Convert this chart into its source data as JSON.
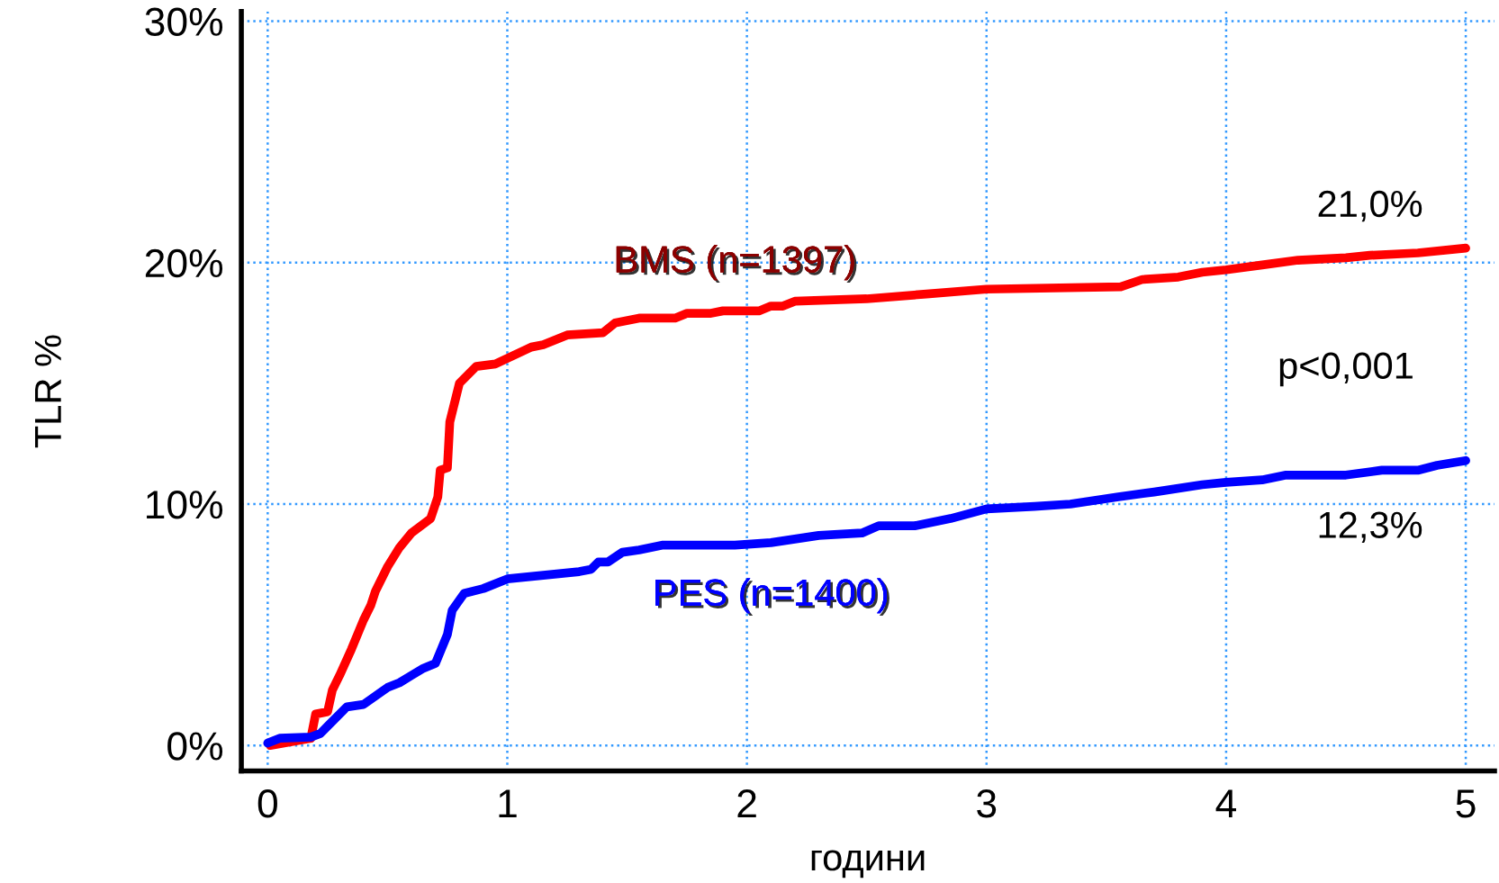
{
  "chart_data": {
    "type": "line",
    "xlabel": "години",
    "ylabel": "TLR %",
    "xlim": [
      -0.11,
      5.12
    ],
    "xticks": [
      0,
      1,
      2,
      3,
      4,
      5
    ],
    "ylim": [
      -1.05,
      30.4
    ],
    "yticks": [
      {
        "value": 0,
        "label": "0%"
      },
      {
        "value": 10,
        "label": "10%"
      },
      {
        "value": 20,
        "label": "20%"
      },
      {
        "value": 30,
        "label": "30%"
      }
    ],
    "grid": true,
    "marker": "none",
    "line_style": "solid",
    "series": [
      {
        "name": "BMS (n=1397)",
        "color": "#ff0000",
        "x": [
          0.01,
          0.18,
          0.2,
          0.25,
          0.27,
          0.3,
          0.35,
          0.4,
          0.43,
          0.45,
          0.5,
          0.55,
          0.6,
          0.68,
          0.71,
          0.72,
          0.75,
          0.76,
          0.8,
          0.87,
          0.95,
          1.1,
          1.15,
          1.25,
          1.4,
          1.45,
          1.55,
          1.7,
          1.75,
          1.85,
          1.9,
          2.05,
          2.1,
          2.15,
          2.2,
          2.5,
          2.75,
          3.0,
          3.56,
          3.65,
          3.8,
          3.9,
          4.0,
          4.15,
          4.3,
          4.5,
          4.6,
          4.8,
          5.0
        ],
        "values": [
          0,
          0.3,
          1.3,
          1.4,
          2.3,
          2.9,
          4.0,
          5.2,
          5.8,
          6.4,
          7.4,
          8.2,
          8.8,
          9.4,
          10.3,
          11.4,
          11.5,
          13.4,
          15.0,
          15.7,
          15.8,
          16.5,
          16.6,
          17.0,
          17.1,
          17.5,
          17.7,
          17.7,
          17.9,
          17.9,
          18.0,
          18.0,
          18.2,
          18.2,
          18.4,
          18.5,
          18.7,
          18.9,
          19.0,
          19.3,
          19.4,
          19.6,
          19.7,
          19.9,
          20.1,
          20.2,
          20.3,
          20.4,
          20.6
        ]
      },
      {
        "name": "PES (n=1400)",
        "color": "#0000ff",
        "x": [
          0.0,
          0.05,
          0.18,
          0.22,
          0.25,
          0.33,
          0.4,
          0.5,
          0.55,
          0.6,
          0.65,
          0.7,
          0.75,
          0.77,
          0.82,
          0.9,
          1.0,
          1.3,
          1.35,
          1.38,
          1.42,
          1.48,
          1.55,
          1.65,
          1.95,
          2.1,
          2.3,
          2.48,
          2.55,
          2.7,
          2.85,
          3.0,
          3.2,
          3.35,
          3.55,
          3.7,
          3.9,
          4.0,
          4.15,
          4.25,
          4.5,
          4.65,
          4.8,
          4.88,
          5.0
        ],
        "values": [
          0.1,
          0.3,
          0.35,
          0.5,
          0.8,
          1.6,
          1.7,
          2.4,
          2.6,
          2.9,
          3.2,
          3.4,
          4.6,
          5.6,
          6.3,
          6.5,
          6.9,
          7.2,
          7.3,
          7.6,
          7.6,
          8.0,
          8.1,
          8.3,
          8.3,
          8.4,
          8.7,
          8.8,
          9.1,
          9.1,
          9.4,
          9.8,
          9.9,
          10.0,
          10.3,
          10.5,
          10.8,
          10.9,
          11.0,
          11.2,
          11.2,
          11.4,
          11.4,
          11.6,
          11.8
        ]
      }
    ],
    "annotations": [
      "21,0%",
      "p<0,001",
      "12,3%"
    ]
  }
}
